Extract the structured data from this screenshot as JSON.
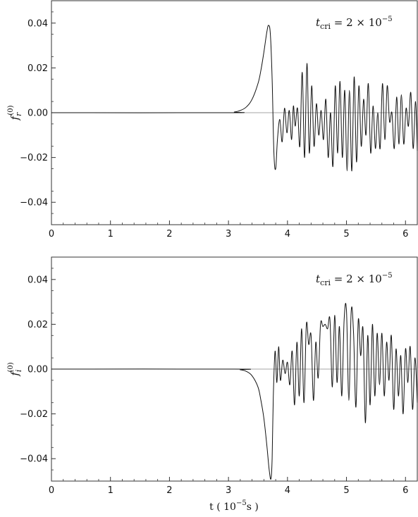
{
  "chart_data": [
    {
      "type": "line",
      "ylabel_base": "f",
      "ylabel_sub": "r",
      "ylabel_sup": "(0)",
      "annotation": {
        "symbol": "t",
        "sub": "cri",
        "rest": " = 2 × 10",
        "exp": "−5"
      },
      "xlim": [
        0,
        6.2
      ],
      "ylim": [
        -0.05,
        0.05
      ],
      "xticks": [
        "0",
        "1",
        "2",
        "3",
        "4",
        "5",
        "6"
      ],
      "yticks": [
        "−0.04",
        "−0.02",
        "0.00",
        "0.02",
        "0.04"
      ],
      "ytick_values": [
        -0.04,
        -0.02,
        0.0,
        0.02,
        0.04
      ],
      "series": [
        {
          "x": [
            0,
            3.0,
            3.1,
            3.2,
            3.3,
            3.4,
            3.5,
            3.55,
            3.6,
            3.65,
            3.68,
            3.71,
            3.74,
            3.77,
            3.8,
            3.83,
            3.87,
            3.91,
            3.95,
            3.99,
            4.03,
            4.07,
            4.1,
            4.13,
            4.17,
            4.21,
            4.25,
            4.29,
            4.33,
            4.37,
            4.41,
            4.45,
            4.49,
            4.53,
            4.57,
            4.61,
            4.65,
            4.69,
            4.73,
            4.77,
            4.81,
            4.85,
            4.89,
            4.93,
            4.97,
            5.01,
            5.05,
            5.09,
            5.13,
            5.17,
            5.21,
            5.25,
            5.29,
            5.33,
            5.37,
            5.41,
            5.45,
            5.49,
            5.53,
            5.57,
            5.61,
            5.65,
            5.69,
            5.73,
            5.77,
            5.81,
            5.85,
            5.89,
            5.93,
            5.97,
            6.01,
            6.05,
            6.09,
            6.13,
            6.17,
            6.2
          ],
          "y": [
            0,
            0.0,
            0.0003,
            0.001,
            0.0025,
            0.006,
            0.013,
            0.019,
            0.027,
            0.036,
            0.039,
            0.035,
            0.015,
            -0.018,
            -0.025,
            -0.012,
            -0.003,
            -0.013,
            0.002,
            -0.009,
            0.001,
            -0.012,
            0.003,
            -0.006,
            0.002,
            -0.015,
            0.018,
            -0.02,
            0.022,
            -0.018,
            0.012,
            -0.015,
            0.004,
            -0.01,
            0.001,
            -0.012,
            0.006,
            -0.02,
            0.0,
            -0.024,
            0.012,
            -0.018,
            0.014,
            -0.02,
            0.01,
            -0.026,
            0.01,
            -0.026,
            0.016,
            -0.022,
            0.012,
            -0.015,
            0.006,
            -0.01,
            0.013,
            -0.018,
            0.003,
            -0.016,
            0.0,
            -0.016,
            0.013,
            -0.012,
            0.012,
            -0.004,
            0.0,
            -0.016,
            0.007,
            -0.014,
            0.008,
            -0.014,
            0.002,
            -0.006,
            0.009,
            -0.016,
            0.005,
            -0.017
          ]
        }
      ]
    },
    {
      "type": "line",
      "ylabel_base": "f",
      "ylabel_sub": "i",
      "ylabel_sup": "(0)",
      "annotation": {
        "symbol": "t",
        "sub": "cri",
        "rest": " = 2 × 10",
        "exp": "−5"
      },
      "xlabel": "t ( 10",
      "xlabel_exp": "−5",
      "xlabel_end": "s )",
      "xlim": [
        0,
        6.2
      ],
      "ylim": [
        -0.05,
        0.05
      ],
      "xticks": [
        "0",
        "1",
        "2",
        "3",
        "4",
        "5",
        "6"
      ],
      "yticks": [
        "−0.04",
        "−0.02",
        "0.00",
        "0.02",
        "0.04"
      ],
      "ytick_values": [
        -0.04,
        -0.02,
        0.0,
        0.02,
        0.04
      ],
      "series": [
        {
          "x": [
            0,
            3.1,
            3.2,
            3.3,
            3.4,
            3.5,
            3.55,
            3.6,
            3.65,
            3.69,
            3.72,
            3.74,
            3.76,
            3.79,
            3.82,
            3.85,
            3.88,
            3.92,
            3.96,
            4.0,
            4.04,
            4.08,
            4.12,
            4.16,
            4.2,
            4.24,
            4.28,
            4.32,
            4.36,
            4.4,
            4.44,
            4.48,
            4.52,
            4.56,
            4.6,
            4.64,
            4.68,
            4.72,
            4.76,
            4.8,
            4.84,
            4.88,
            4.92,
            4.96,
            5.0,
            5.04,
            5.08,
            5.12,
            5.16,
            5.2,
            5.24,
            5.28,
            5.32,
            5.36,
            5.4,
            5.44,
            5.48,
            5.52,
            5.56,
            5.6,
            5.64,
            5.68,
            5.72,
            5.76,
            5.8,
            5.84,
            5.88,
            5.92,
            5.96,
            6.0,
            6.04,
            6.08,
            6.12,
            6.16,
            6.2
          ],
          "y": [
            0,
            0.0,
            -0.0003,
            -0.001,
            -0.003,
            -0.008,
            -0.014,
            -0.022,
            -0.034,
            -0.045,
            -0.049,
            -0.04,
            -0.012,
            0.008,
            -0.006,
            0.01,
            -0.005,
            0.004,
            -0.002,
            0.003,
            -0.007,
            0.008,
            -0.016,
            0.012,
            -0.012,
            0.018,
            -0.015,
            0.02,
            0.011,
            0.015,
            -0.014,
            0.012,
            -0.004,
            0.02,
            0.019,
            0.02,
            0.018,
            0.022,
            -0.008,
            0.024,
            -0.006,
            0.019,
            -0.012,
            0.022,
            0.026,
            -0.014,
            0.026,
            0.016,
            -0.017,
            0.022,
            0.006,
            0.018,
            -0.024,
            0.015,
            -0.016,
            0.02,
            -0.012,
            0.016,
            -0.007,
            0.016,
            -0.012,
            0.012,
            -0.005,
            0.015,
            -0.018,
            0.009,
            -0.012,
            0.006,
            -0.02,
            0.009,
            -0.006,
            0.01,
            -0.018,
            0.005,
            -0.015
          ]
        }
      ]
    }
  ]
}
